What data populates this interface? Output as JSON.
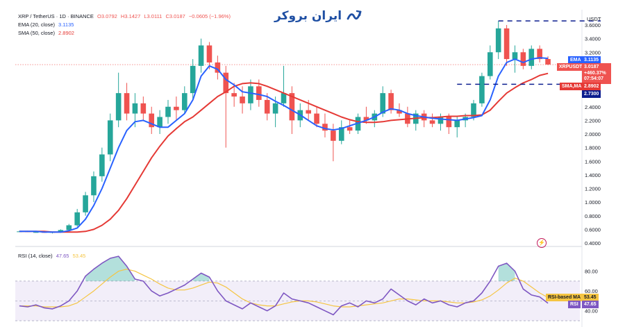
{
  "header": {
    "symbol_line": "XRP / TetherUS · 1D · BINANCE",
    "ohlc": {
      "o": "O3.0792",
      "h": "H3.1427",
      "l": "L3.0111",
      "c": "C3.0187",
      "chg": "−0.0605 (−1.96%)"
    },
    "ema_label": "EMA (20, close)",
    "ema_value": "3.1135",
    "sma_label": "SMA (50, close)",
    "sma_value": "2.8902"
  },
  "logo": {
    "text": "ایران بروکر",
    "icon": "chart-swoosh-icon"
  },
  "price_axis": {
    "currency": "USDT",
    "ticks": [
      "3.6000",
      "3.4000",
      "3.2000",
      "2.4000",
      "2.2000",
      "2.0000",
      "1.8000",
      "1.6000",
      "1.4000",
      "1.2000",
      "1.0000",
      "0.8000",
      "0.6000",
      "0.4000"
    ]
  },
  "price_tags": {
    "ema": {
      "label": "EMA",
      "value": "3.1135"
    },
    "last": {
      "symbol": "XRPUSDT",
      "price": "3.0187",
      "change": "+460.37%",
      "countdown": "07:54:07"
    },
    "sma": {
      "label": "SMA,MA",
      "value": "2.8902"
    },
    "level": {
      "value": "2.7300"
    }
  },
  "rsi": {
    "label": "RSI (14, close)",
    "value": "47.65",
    "value2": "53.45",
    "axis_ticks": [
      "80.00",
      "60.00",
      "40.00"
    ],
    "ma_tag": {
      "label": "RSI-based MA",
      "value": "53.45"
    },
    "rsi_tag": {
      "label": "RSI",
      "value": "47.65"
    }
  },
  "colors": {
    "up": "#26a69a",
    "down": "#ef5350",
    "ema": "#2962ff",
    "sma": "#e53935",
    "rsi": "#7e57c2",
    "rsi_ma": "#f5c542",
    "level": "#0b1d8f"
  },
  "chart_data": [
    {
      "type": "candlestick",
      "title": "XRP / TetherUS · 1D · BINANCE",
      "ylim": [
        0.35,
        3.75
      ],
      "y_ticks": [
        0.4,
        0.6,
        0.8,
        1.0,
        1.2,
        1.4,
        1.6,
        1.8,
        2.0,
        2.2,
        2.4,
        3.2,
        3.4,
        3.6
      ],
      "series": [
        {
          "name": "EMA (20, close)",
          "values": [
            0.57,
            0.57,
            0.57,
            0.56,
            0.56,
            0.56,
            0.58,
            0.62,
            0.75,
            0.95,
            1.2,
            1.5,
            1.8,
            2.05,
            2.18,
            2.2,
            2.15,
            2.1,
            2.1,
            2.2,
            2.3,
            2.5,
            2.85,
            3.0,
            2.95,
            2.8,
            2.72,
            2.62,
            2.6,
            2.58,
            2.55,
            2.48,
            2.42,
            2.35,
            2.28,
            2.2,
            2.12,
            2.08,
            2.06,
            2.08,
            2.12,
            2.16,
            2.2,
            2.25,
            2.32,
            2.37,
            2.35,
            2.3,
            2.27,
            2.25,
            2.23,
            2.22,
            2.21,
            2.2,
            2.22,
            2.24,
            2.27,
            2.5,
            2.85,
            3.05,
            3.1,
            3.05,
            3.1,
            3.12,
            3.11
          ]
        },
        {
          "name": "SMA (50, close)",
          "values": [
            0.57,
            0.57,
            0.57,
            0.57,
            0.56,
            0.56,
            0.56,
            0.56,
            0.57,
            0.6,
            0.66,
            0.75,
            0.88,
            1.05,
            1.25,
            1.45,
            1.65,
            1.82,
            1.97,
            2.08,
            2.18,
            2.25,
            2.35,
            2.45,
            2.55,
            2.62,
            2.7,
            2.74,
            2.75,
            2.74,
            2.7,
            2.65,
            2.6,
            2.55,
            2.5,
            2.45,
            2.4,
            2.35,
            2.3,
            2.25,
            2.21,
            2.18,
            2.17,
            2.17,
            2.18,
            2.2,
            2.21,
            2.22,
            2.23,
            2.24,
            2.24,
            2.25,
            2.26,
            2.26,
            2.27,
            2.27,
            2.28,
            2.35,
            2.48,
            2.6,
            2.68,
            2.75,
            2.8,
            2.86,
            2.89
          ]
        }
      ],
      "candles": [
        [
          0.57,
          0.58,
          0.56,
          0.57
        ],
        [
          0.57,
          0.58,
          0.56,
          0.56
        ],
        [
          0.56,
          0.57,
          0.55,
          0.56
        ],
        [
          0.56,
          0.57,
          0.55,
          0.55
        ],
        [
          0.55,
          0.56,
          0.54,
          0.56
        ],
        [
          0.56,
          0.6,
          0.55,
          0.59
        ],
        [
          0.59,
          0.68,
          0.58,
          0.66
        ],
        [
          0.66,
          0.9,
          0.64,
          0.85
        ],
        [
          0.85,
          1.15,
          0.8,
          1.1
        ],
        [
          1.1,
          1.45,
          1.0,
          1.38
        ],
        [
          1.38,
          1.8,
          1.3,
          1.7
        ],
        [
          1.7,
          2.3,
          1.6,
          2.2
        ],
        [
          2.2,
          2.9,
          2.1,
          2.6
        ],
        [
          2.6,
          2.75,
          2.2,
          2.3
        ],
        [
          2.3,
          2.6,
          2.1,
          2.45
        ],
        [
          2.45,
          2.55,
          2.2,
          2.3
        ],
        [
          2.3,
          2.4,
          2.0,
          2.1
        ],
        [
          2.1,
          2.35,
          2.0,
          2.25
        ],
        [
          2.25,
          2.5,
          2.15,
          2.4
        ],
        [
          2.4,
          2.55,
          2.2,
          2.35
        ],
        [
          2.35,
          2.7,
          2.3,
          2.6
        ],
        [
          2.6,
          3.1,
          2.5,
          3.0
        ],
        [
          3.0,
          3.4,
          2.9,
          3.3
        ],
        [
          3.3,
          3.35,
          2.95,
          3.05
        ],
        [
          3.05,
          3.15,
          2.8,
          2.9
        ],
        [
          2.9,
          3.0,
          1.8,
          2.6
        ],
        [
          2.6,
          2.75,
          2.4,
          2.55
        ],
        [
          2.55,
          2.7,
          2.3,
          2.45
        ],
        [
          2.45,
          2.8,
          2.35,
          2.7
        ],
        [
          2.7,
          2.8,
          2.4,
          2.5
        ],
        [
          2.5,
          2.6,
          2.2,
          2.3
        ],
        [
          2.3,
          2.55,
          2.1,
          2.45
        ],
        [
          2.45,
          3.0,
          2.4,
          2.6
        ],
        [
          2.6,
          2.7,
          2.0,
          2.2
        ],
        [
          2.2,
          2.45,
          2.1,
          2.35
        ],
        [
          2.35,
          2.5,
          2.2,
          2.3
        ],
        [
          2.3,
          2.4,
          2.1,
          2.15
        ],
        [
          2.15,
          2.3,
          1.95,
          2.05
        ],
        [
          2.05,
          2.15,
          1.6,
          1.9
        ],
        [
          1.9,
          2.2,
          1.85,
          2.1
        ],
        [
          2.1,
          2.2,
          2.0,
          2.05
        ],
        [
          2.05,
          2.3,
          2.0,
          2.25
        ],
        [
          2.25,
          2.4,
          2.15,
          2.2
        ],
        [
          2.2,
          2.35,
          2.1,
          2.3
        ],
        [
          2.3,
          2.7,
          2.25,
          2.6
        ],
        [
          2.6,
          2.65,
          2.3,
          2.35
        ],
        [
          2.35,
          2.45,
          2.25,
          2.3
        ],
        [
          2.3,
          2.4,
          2.1,
          2.15
        ],
        [
          2.15,
          2.35,
          2.05,
          2.3
        ],
        [
          2.3,
          2.35,
          2.1,
          2.2
        ],
        [
          2.2,
          2.3,
          2.1,
          2.15
        ],
        [
          2.15,
          2.3,
          2.05,
          2.25
        ],
        [
          2.25,
          2.3,
          2.0,
          2.1
        ],
        [
          2.1,
          2.25,
          1.95,
          2.2
        ],
        [
          2.2,
          2.3,
          2.1,
          2.25
        ],
        [
          2.25,
          2.5,
          2.2,
          2.45
        ],
        [
          2.45,
          2.9,
          2.4,
          2.85
        ],
        [
          2.85,
          3.3,
          2.8,
          3.2
        ],
        [
          3.2,
          3.66,
          3.1,
          3.55
        ],
        [
          3.55,
          3.6,
          3.0,
          3.1
        ],
        [
          3.1,
          3.3,
          2.9,
          3.2
        ],
        [
          3.2,
          3.25,
          2.95,
          3.0
        ],
        [
          3.0,
          3.3,
          2.95,
          3.25
        ],
        [
          3.25,
          3.3,
          3.05,
          3.1
        ],
        [
          3.1,
          3.14,
          3.01,
          3.02
        ]
      ]
    },
    {
      "type": "line",
      "title": "RSI (14, close)",
      "ylim": [
        30,
        100
      ],
      "y_ticks": [
        40,
        60,
        80
      ],
      "series": [
        {
          "name": "RSI",
          "values": [
            45,
            44,
            46,
            43,
            42,
            45,
            50,
            60,
            75,
            82,
            88,
            93,
            95,
            85,
            72,
            70,
            60,
            55,
            58,
            62,
            66,
            72,
            78,
            74,
            60,
            50,
            46,
            42,
            48,
            44,
            40,
            45,
            58,
            52,
            50,
            48,
            44,
            40,
            36,
            45,
            48,
            44,
            50,
            48,
            52,
            62,
            56,
            50,
            46,
            52,
            48,
            50,
            46,
            44,
            48,
            50,
            58,
            70,
            85,
            88,
            80,
            62,
            56,
            54,
            47.65
          ]
        },
        {
          "name": "RSI-based MA",
          "values": [
            45,
            45,
            45,
            44,
            44,
            44,
            45,
            48,
            54,
            60,
            67,
            74,
            80,
            82,
            80,
            76,
            72,
            67,
            63,
            61,
            61,
            63,
            66,
            69,
            68,
            64,
            58,
            52,
            48,
            46,
            45,
            45,
            47,
            49,
            50,
            50,
            49,
            47,
            45,
            44,
            44,
            45,
            46,
            47,
            48,
            50,
            52,
            52,
            51,
            50,
            50,
            50,
            49,
            48,
            48,
            49,
            51,
            55,
            61,
            68,
            73,
            70,
            64,
            58,
            53.45
          ]
        }
      ]
    }
  ]
}
